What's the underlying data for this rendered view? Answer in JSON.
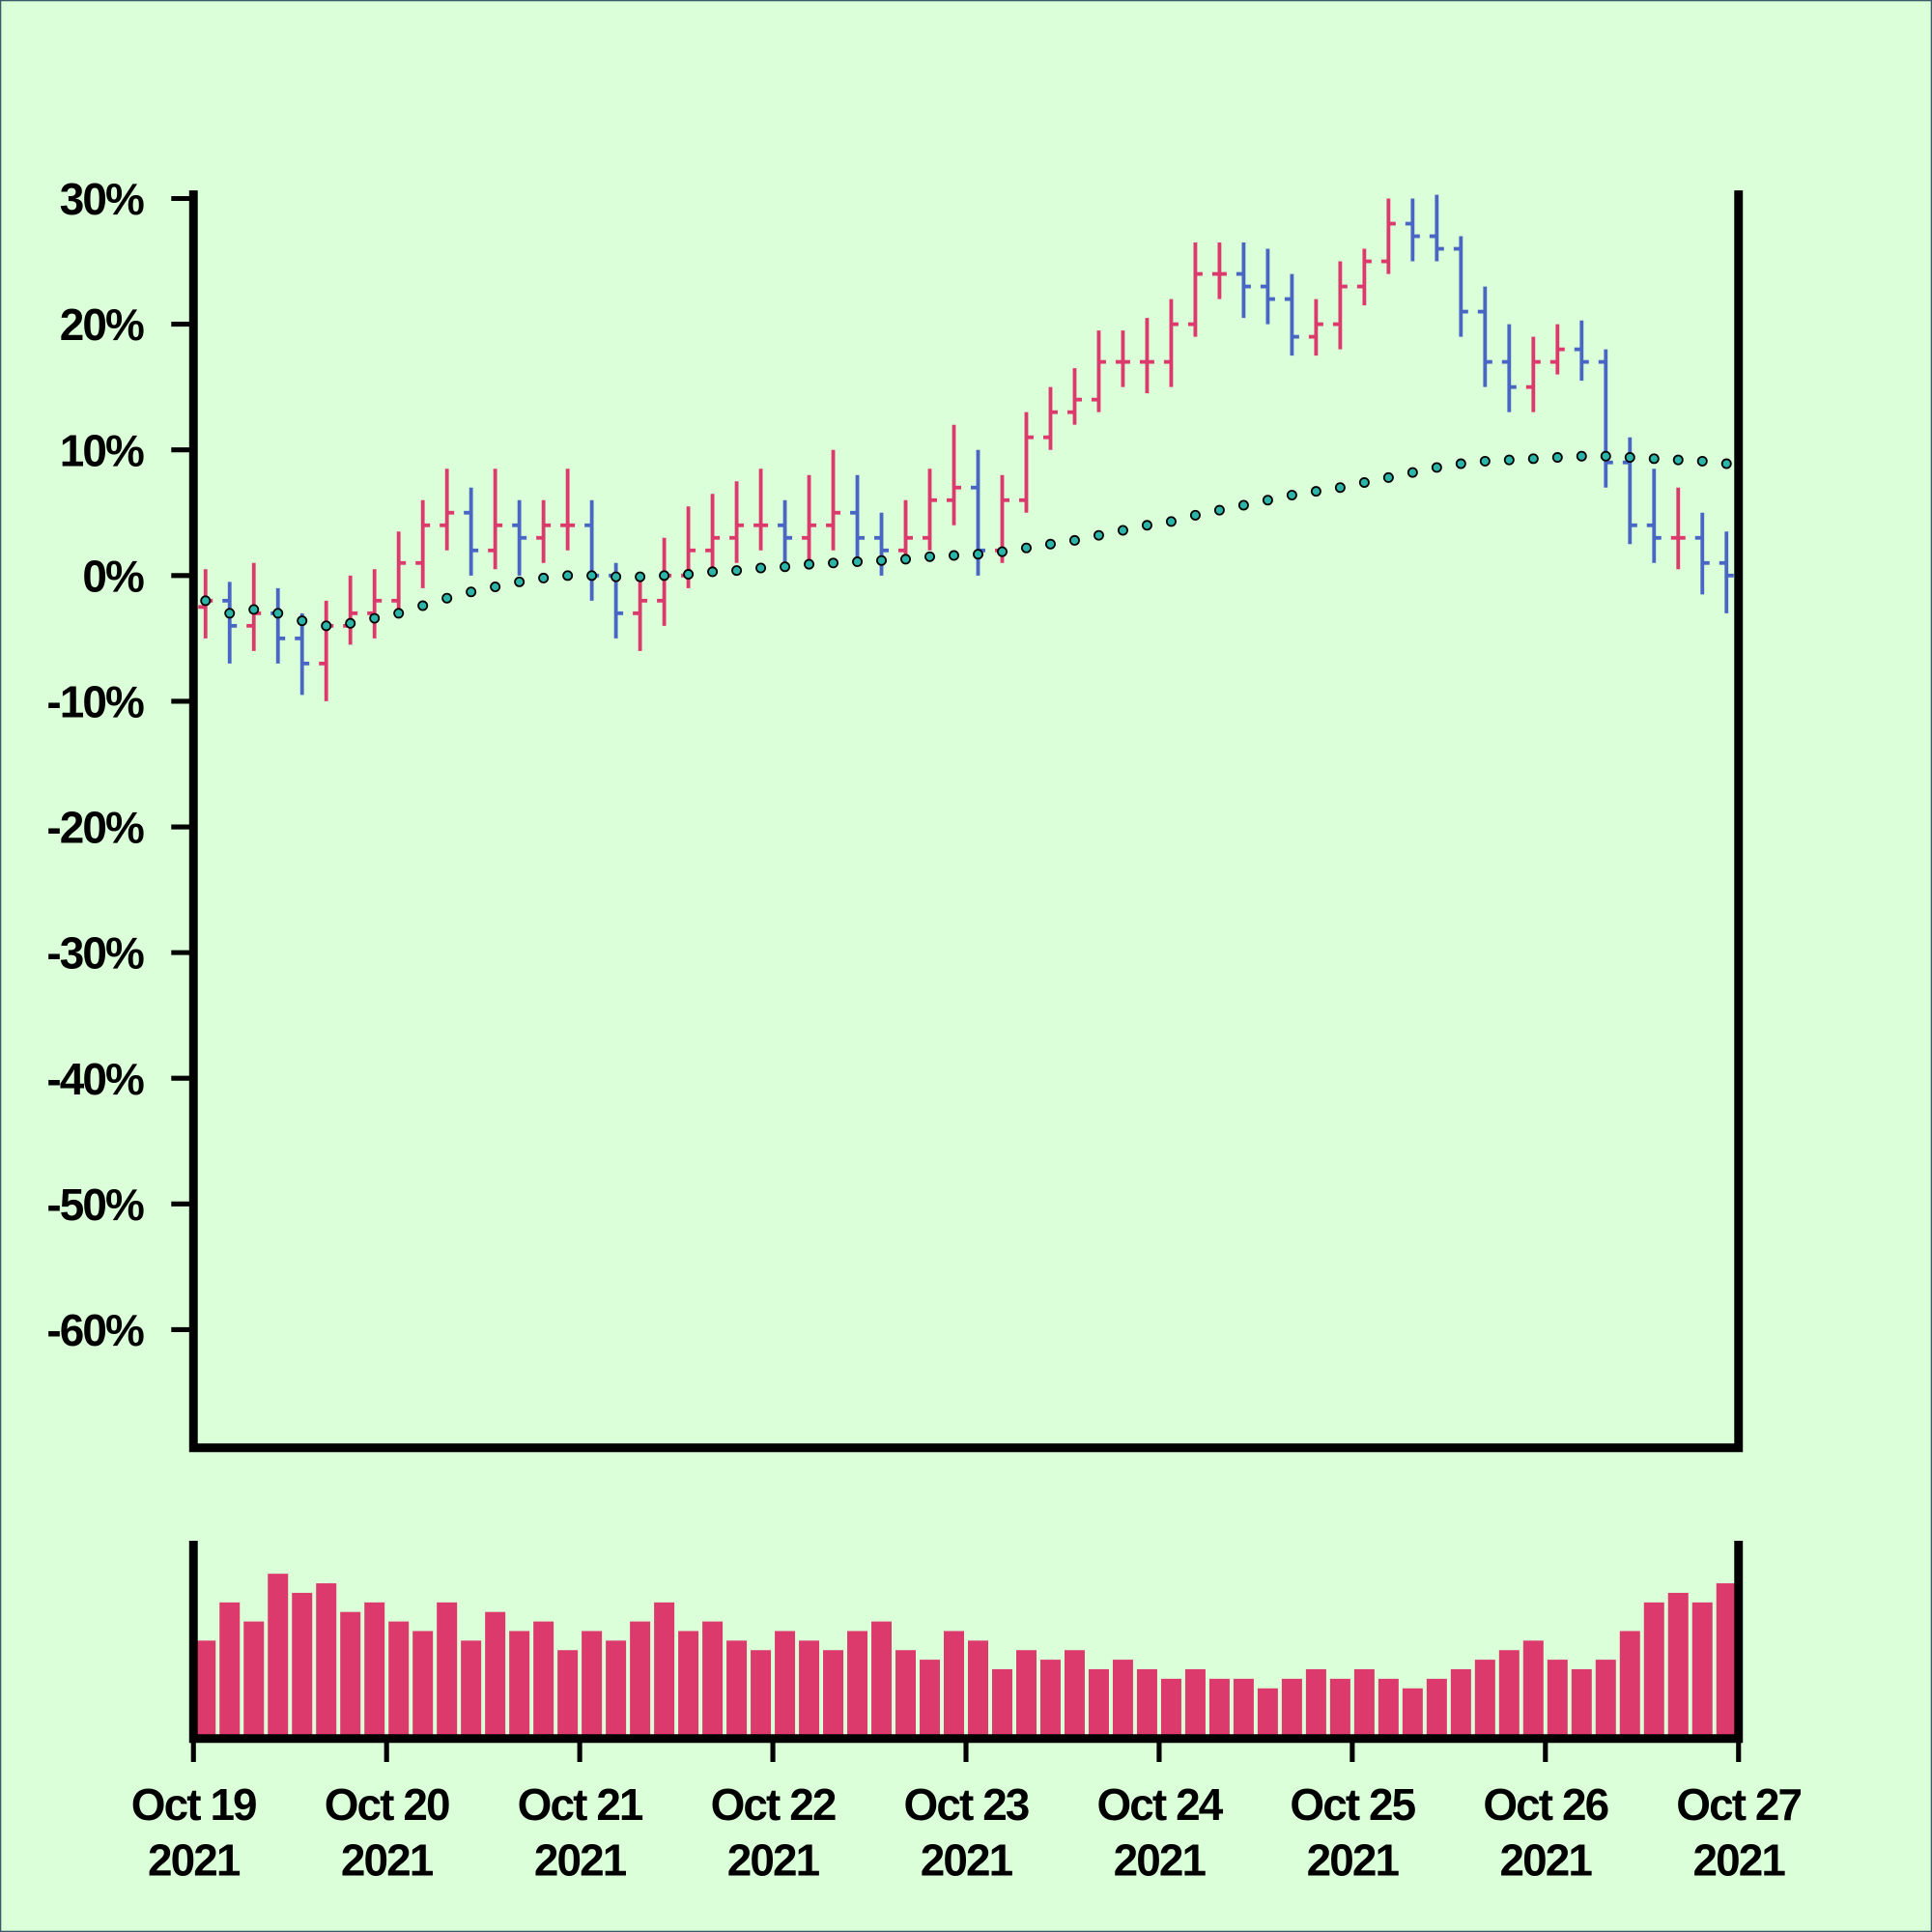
{
  "chart_data": {
    "type": "ohlc",
    "x": [
      "2021-10-19T01:30",
      "2021-10-19T04:30",
      "2021-10-19T07:30",
      "2021-10-19T10:30",
      "2021-10-19T13:30",
      "2021-10-19T16:30",
      "2021-10-19T19:30",
      "2021-10-19T22:30",
      "2021-10-20T01:30",
      "2021-10-20T04:30",
      "2021-10-20T07:30",
      "2021-10-20T10:30",
      "2021-10-20T13:30",
      "2021-10-20T16:30",
      "2021-10-20T19:30",
      "2021-10-20T22:30",
      "2021-10-21T01:30",
      "2021-10-21T04:30",
      "2021-10-21T07:30",
      "2021-10-21T10:30",
      "2021-10-21T13:30",
      "2021-10-21T16:30",
      "2021-10-21T19:30",
      "2021-10-21T22:30",
      "2021-10-22T01:30",
      "2021-10-22T04:30",
      "2021-10-22T07:30",
      "2021-10-22T10:30",
      "2021-10-22T13:30",
      "2021-10-22T16:30",
      "2021-10-22T19:30",
      "2021-10-22T22:30",
      "2021-10-23T01:30",
      "2021-10-23T04:30",
      "2021-10-23T07:30",
      "2021-10-23T10:30",
      "2021-10-23T13:30",
      "2021-10-23T16:30",
      "2021-10-23T19:30",
      "2021-10-23T22:30",
      "2021-10-24T01:30",
      "2021-10-24T04:30",
      "2021-10-24T07:30",
      "2021-10-24T10:30",
      "2021-10-24T13:30",
      "2021-10-24T16:30",
      "2021-10-24T19:30",
      "2021-10-24T22:30",
      "2021-10-25T01:30",
      "2021-10-25T04:30",
      "2021-10-25T07:30",
      "2021-10-25T10:30",
      "2021-10-25T13:30",
      "2021-10-25T16:30",
      "2021-10-25T19:30",
      "2021-10-25T22:30",
      "2021-10-26T01:30",
      "2021-10-26T04:30",
      "2021-10-26T07:30",
      "2021-10-26T10:30",
      "2021-10-26T13:30",
      "2021-10-26T16:30",
      "2021-10-26T19:30",
      "2021-10-26T22:30"
    ],
    "open": [
      -2.5,
      -2,
      -4,
      -3,
      -5,
      -7,
      -4,
      -3,
      -2,
      1,
      4,
      5,
      2,
      4,
      3,
      4,
      4,
      0,
      -3,
      -2,
      0,
      2,
      3,
      4,
      4,
      3,
      4,
      5,
      3,
      2,
      3,
      6,
      7,
      2,
      6,
      11,
      13,
      14,
      17,
      17,
      17,
      20,
      24,
      24,
      23,
      22,
      19,
      20,
      23,
      25,
      28,
      27,
      26,
      21,
      17,
      15,
      17,
      18,
      17,
      9,
      4,
      3,
      3,
      1
    ],
    "high": [
      0.5,
      -0.5,
      1,
      -1,
      -3,
      -2,
      0,
      0.5,
      3.5,
      6,
      8.5,
      7,
      8.5,
      6,
      6,
      8.5,
      6,
      1,
      0,
      3,
      5.5,
      6.5,
      7.5,
      8.5,
      6,
      8,
      10,
      8,
      5,
      6,
      8.5,
      12,
      10,
      8,
      13,
      15,
      16.5,
      19.5,
      19.5,
      20.5,
      22,
      26.5,
      26.5,
      26.5,
      26,
      24,
      22,
      25,
      26,
      30,
      30,
      30.3,
      27,
      23,
      20,
      19,
      20,
      20.3,
      18,
      11,
      8.5,
      7,
      5,
      3.5
    ],
    "low": [
      -5,
      -7,
      -6,
      -7,
      -9.5,
      -10,
      -5.5,
      -5,
      -3,
      -1,
      2,
      0,
      0.5,
      0,
      1,
      2,
      -2,
      -5,
      -6,
      -4,
      -1,
      0,
      1,
      2,
      0.5,
      1,
      2,
      1,
      0,
      1,
      2,
      4,
      0,
      1,
      5,
      10,
      12,
      13,
      15,
      14.5,
      15,
      19,
      22,
      20.5,
      20,
      17.5,
      17.5,
      18,
      21.5,
      24,
      25,
      25,
      19,
      15,
      13,
      13,
      16,
      15.5,
      7,
      2.5,
      1,
      0.5,
      -1.5,
      -3
    ],
    "close": [
      -2,
      -4,
      -3,
      -5,
      -7,
      -4,
      -3,
      -2,
      1,
      4,
      5,
      2,
      4,
      3,
      4,
      4,
      0,
      -3,
      -2,
      0,
      2,
      3,
      4,
      4,
      3,
      4,
      5,
      3,
      2,
      3,
      6,
      7,
      2,
      6,
      11,
      13,
      14,
      17,
      17,
      17,
      20,
      24,
      24,
      23,
      22,
      19,
      20,
      23,
      25,
      28,
      27,
      26,
      21,
      17,
      15,
      17,
      18,
      17,
      9,
      4,
      3,
      3,
      1,
      0
    ],
    "up_color": "#dc3a6c",
    "down_color": "#4a66c4",
    "moving_average": {
      "color": "#2bb5a8",
      "values": [
        -2,
        -3,
        -2.7,
        -3,
        -3.6,
        -4,
        -3.8,
        -3.4,
        -3,
        -2.4,
        -1.8,
        -1.3,
        -0.9,
        -0.5,
        -0.2,
        0,
        0,
        -0.1,
        -0.1,
        0,
        0.1,
        0.3,
        0.4,
        0.6,
        0.7,
        0.9,
        1.0,
        1.1,
        1.2,
        1.3,
        1.5,
        1.6,
        1.7,
        1.9,
        2.2,
        2.5,
        2.8,
        3.2,
        3.6,
        4.0,
        4.3,
        4.8,
        5.2,
        5.6,
        6.0,
        6.4,
        6.7,
        7.0,
        7.4,
        7.8,
        8.2,
        8.6,
        8.9,
        9.1,
        9.2,
        9.3,
        9.4,
        9.5,
        9.5,
        9.4,
        9.3,
        9.2,
        9.1,
        8.9
      ]
    },
    "volume": {
      "color": "#dc3a6c",
      "ylim": [
        0,
        100
      ],
      "values": [
        50,
        70,
        60,
        85,
        75,
        80,
        65,
        70,
        60,
        55,
        70,
        50,
        65,
        55,
        60,
        45,
        55,
        50,
        60,
        70,
        55,
        60,
        50,
        45,
        55,
        50,
        45,
        55,
        60,
        45,
        40,
        55,
        50,
        35,
        45,
        40,
        45,
        35,
        40,
        35,
        30,
        35,
        30,
        30,
        25,
        30,
        35,
        30,
        35,
        30,
        25,
        30,
        35,
        40,
        45,
        50,
        40,
        35,
        40,
        55,
        70,
        75,
        70,
        80
      ]
    },
    "xlim": [
      "2021-10-19",
      "2021-10-27"
    ],
    "xticks": [
      {
        "value": "2021-10-19",
        "label": [
          "Oct 19",
          "2021"
        ]
      },
      {
        "value": "2021-10-20",
        "label": [
          "Oct 20",
          "2021"
        ]
      },
      {
        "value": "2021-10-21",
        "label": [
          "Oct 21",
          "2021"
        ]
      },
      {
        "value": "2021-10-22",
        "label": [
          "Oct 22",
          "2021"
        ]
      },
      {
        "value": "2021-10-23",
        "label": [
          "Oct 23",
          "2021"
        ]
      },
      {
        "value": "2021-10-24",
        "label": [
          "Oct 24",
          "2021"
        ]
      },
      {
        "value": "2021-10-25",
        "label": [
          "Oct 25",
          "2021"
        ]
      },
      {
        "value": "2021-10-26",
        "label": [
          "Oct 26",
          "2021"
        ]
      },
      {
        "value": "2021-10-27",
        "label": [
          "Oct 27",
          "2021"
        ]
      }
    ],
    "ylim": [
      -69.4,
      30.6
    ],
    "yticks": [
      {
        "value": -60,
        "label": "-60%"
      },
      {
        "value": -50,
        "label": "-50%"
      },
      {
        "value": -40,
        "label": "-40%"
      },
      {
        "value": -30,
        "label": "-30%"
      },
      {
        "value": -20,
        "label": "-20%"
      },
      {
        "value": -10,
        "label": "-10%"
      },
      {
        "value": 0,
        "label": "0%"
      },
      {
        "value": 10,
        "label": "10%"
      },
      {
        "value": 20,
        "label": "20%"
      },
      {
        "value": 30,
        "label": "30%"
      }
    ]
  }
}
